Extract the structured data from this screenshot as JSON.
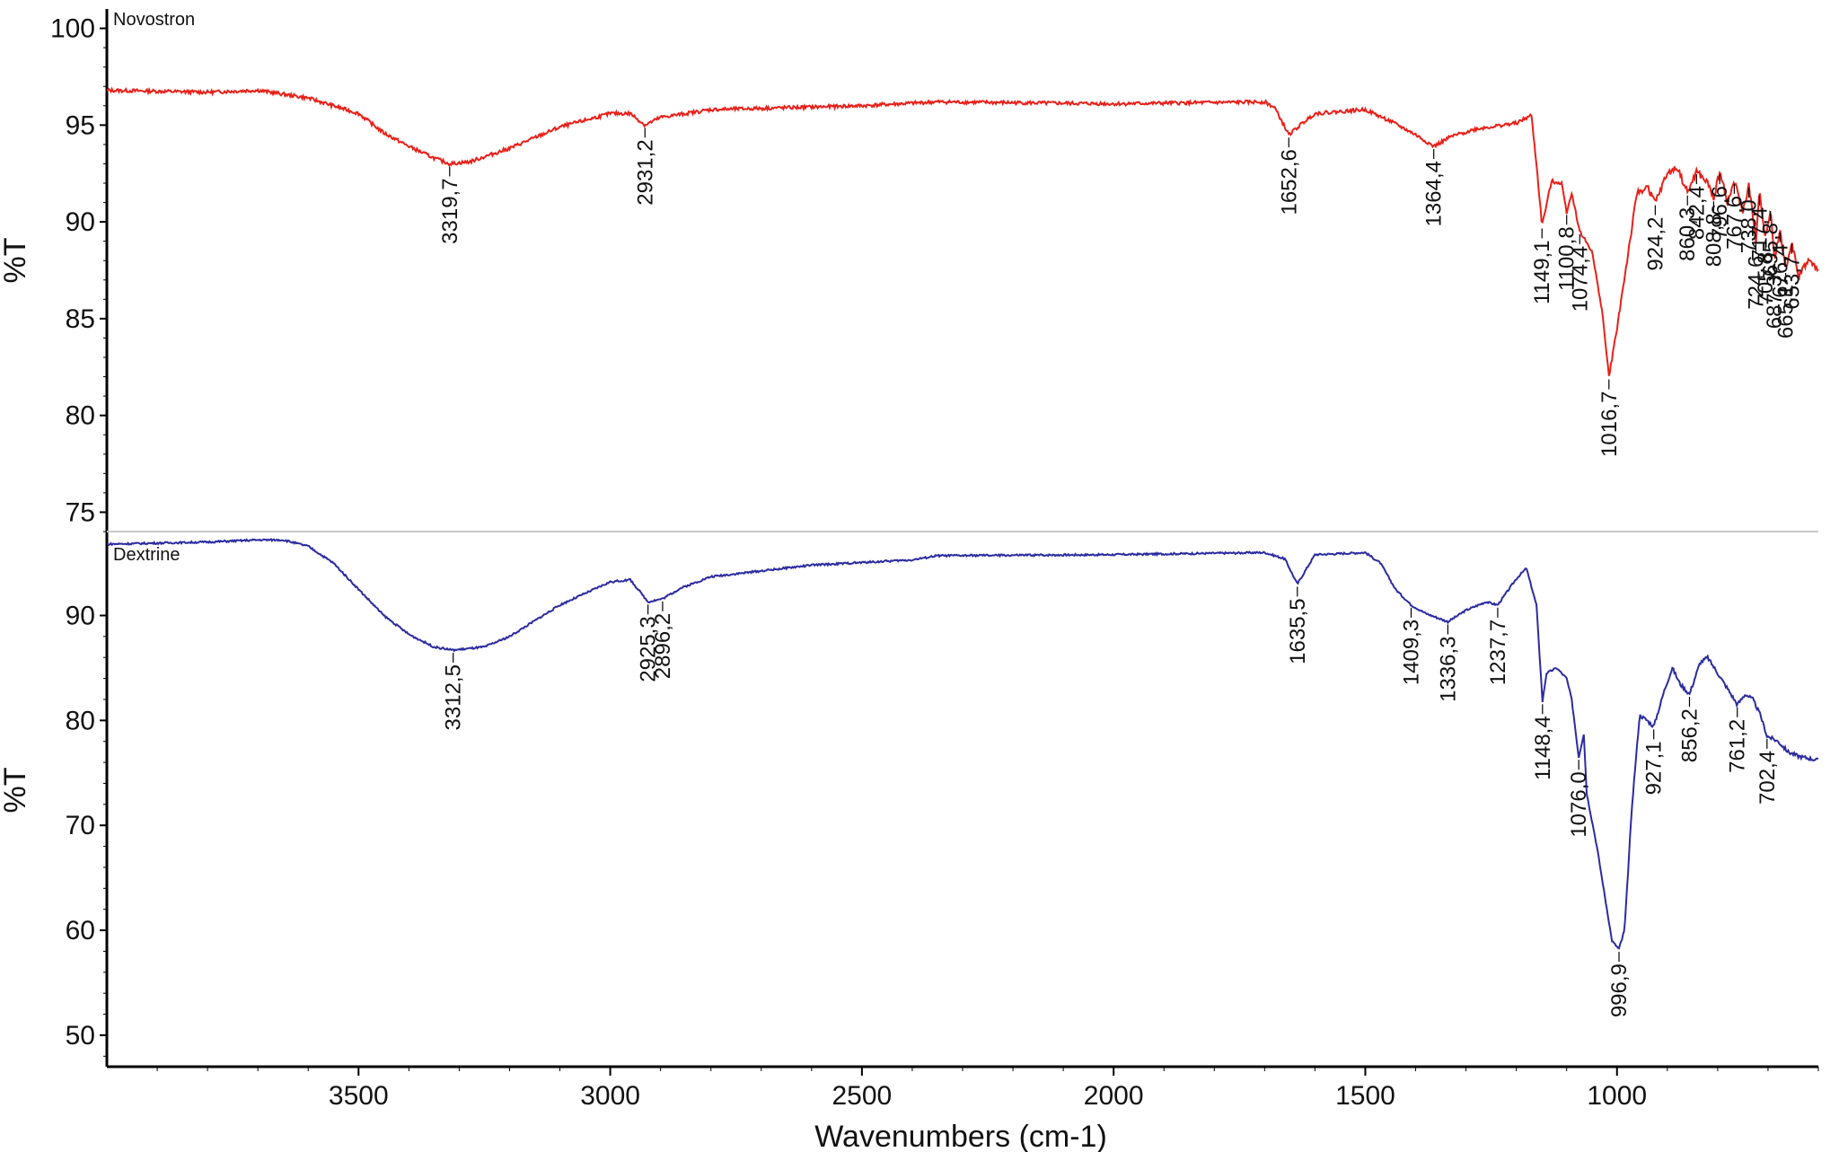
{
  "chart_data": {
    "type": "line",
    "xlabel": "Wavenumbers (cm-1)",
    "x_reversed": true,
    "xlim": [
      4000,
      600
    ],
    "x_ticks": [
      3500,
      3000,
      2500,
      2000,
      1500,
      1000
    ],
    "grid": false,
    "legend": "none",
    "panels": [
      {
        "name": "Novostron",
        "color": "#e8201a",
        "ylabel": "%T",
        "ylim": [
          74,
          101
        ],
        "y_ticks": [
          100,
          95,
          90,
          85,
          80,
          75
        ],
        "points": [
          [
            4000,
            96.8
          ],
          [
            3800,
            96.7
          ],
          [
            3700,
            96.8
          ],
          [
            3600,
            96.4
          ],
          [
            3500,
            95.6
          ],
          [
            3450,
            94.6
          ],
          [
            3400,
            93.9
          ],
          [
            3350,
            93.3
          ],
          [
            3319,
            93.0
          ],
          [
            3280,
            93.1
          ],
          [
            3200,
            93.8
          ],
          [
            3100,
            94.9
          ],
          [
            3000,
            95.6
          ],
          [
            2960,
            95.6
          ],
          [
            2931,
            95.0
          ],
          [
            2900,
            95.4
          ],
          [
            2800,
            95.8
          ],
          [
            2500,
            96.0
          ],
          [
            2350,
            96.2
          ],
          [
            2000,
            96.1
          ],
          [
            1700,
            96.2
          ],
          [
            1680,
            95.9
          ],
          [
            1652,
            94.5
          ],
          [
            1620,
            95.2
          ],
          [
            1600,
            95.6
          ],
          [
            1500,
            95.8
          ],
          [
            1450,
            95.2
          ],
          [
            1400,
            94.5
          ],
          [
            1364,
            93.9
          ],
          [
            1330,
            94.4
          ],
          [
            1280,
            94.8
          ],
          [
            1200,
            95.1
          ],
          [
            1170,
            95.5
          ],
          [
            1160,
            93.0
          ],
          [
            1149,
            89.8
          ],
          [
            1130,
            92.1
          ],
          [
            1110,
            92.0
          ],
          [
            1100,
            90.5
          ],
          [
            1090,
            91.5
          ],
          [
            1074,
            89.5
          ],
          [
            1050,
            88.5
          ],
          [
            1030,
            85.5
          ],
          [
            1016,
            82.0
          ],
          [
            1000,
            84.5
          ],
          [
            980,
            88.0
          ],
          [
            960,
            91.5
          ],
          [
            940,
            91.8
          ],
          [
            924,
            91.0
          ],
          [
            900,
            92.5
          ],
          [
            880,
            92.8
          ],
          [
            860,
            91.5
          ],
          [
            842,
            92.6
          ],
          [
            820,
            92.0
          ],
          [
            808,
            91.2
          ],
          [
            796,
            92.6
          ],
          [
            780,
            91.0
          ],
          [
            767,
            92.1
          ],
          [
            750,
            90.5
          ],
          [
            738,
            91.9
          ],
          [
            724,
            89.0
          ],
          [
            717,
            91.5
          ],
          [
            705,
            89.2
          ],
          [
            695,
            90.7
          ],
          [
            687,
            88.0
          ],
          [
            676,
            89.6
          ],
          [
            665,
            87.5
          ],
          [
            653,
            89.0
          ],
          [
            640,
            87.2
          ],
          [
            620,
            88.0
          ],
          [
            600,
            87.5
          ]
        ],
        "peaks": [
          {
            "label": "3319,7",
            "x": 3319
          },
          {
            "label": "2931,2",
            "x": 2931
          },
          {
            "label": "1652,6",
            "x": 1652
          },
          {
            "label": "1364,4",
            "x": 1364
          },
          {
            "label": "1149,1",
            "x": 1149
          },
          {
            "label": "1100,8",
            "x": 1100
          },
          {
            "label": "1074,4",
            "x": 1074
          },
          {
            "label": "1016,7",
            "x": 1016
          },
          {
            "label": "924,2",
            "x": 924
          },
          {
            "label": "860,3",
            "x": 860
          },
          {
            "label": "842,4",
            "x": 842
          },
          {
            "label": "808,8",
            "x": 808
          },
          {
            "label": "796,6",
            "x": 796
          },
          {
            "label": "767,6",
            "x": 767
          },
          {
            "label": "738,0",
            "x": 738
          },
          {
            "label": "724,6",
            "x": 724
          },
          {
            "label": "717,4",
            "x": 717
          },
          {
            "label": "705,8",
            "x": 705
          },
          {
            "label": "695,8",
            "x": 695
          },
          {
            "label": "687,3",
            "x": 687
          },
          {
            "label": "676,4",
            "x": 676
          },
          {
            "label": "665,1",
            "x": 665
          },
          {
            "label": "653,7",
            "x": 653
          }
        ]
      },
      {
        "name": "Dextrine",
        "color": "#2b2ba0",
        "ylabel": "%T",
        "ylim": [
          47,
          98
        ],
        "y_ticks": [
          90,
          80,
          70,
          60,
          50
        ],
        "points": [
          [
            4000,
            96.8
          ],
          [
            3800,
            97.0
          ],
          [
            3700,
            97.2
          ],
          [
            3650,
            97.2
          ],
          [
            3600,
            96.6
          ],
          [
            3550,
            95.0
          ],
          [
            3500,
            92.5
          ],
          [
            3450,
            90.0
          ],
          [
            3400,
            88.2
          ],
          [
            3350,
            87.0
          ],
          [
            3312,
            86.7
          ],
          [
            3250,
            87.0
          ],
          [
            3200,
            88.0
          ],
          [
            3100,
            91.0
          ],
          [
            3000,
            93.2
          ],
          [
            2960,
            93.4
          ],
          [
            2925,
            91.3
          ],
          [
            2896,
            91.6
          ],
          [
            2860,
            92.6
          ],
          [
            2800,
            93.7
          ],
          [
            2600,
            94.8
          ],
          [
            2400,
            95.3
          ],
          [
            2350,
            95.7
          ],
          [
            2000,
            95.8
          ],
          [
            1700,
            96.0
          ],
          [
            1660,
            95.4
          ],
          [
            1635,
            93.0
          ],
          [
            1600,
            95.8
          ],
          [
            1500,
            96.0
          ],
          [
            1470,
            95.0
          ],
          [
            1440,
            92.5
          ],
          [
            1409,
            91.0
          ],
          [
            1380,
            90.2
          ],
          [
            1336,
            89.4
          ],
          [
            1300,
            90.5
          ],
          [
            1260,
            91.3
          ],
          [
            1237,
            91.0
          ],
          [
            1200,
            93.5
          ],
          [
            1180,
            94.5
          ],
          [
            1160,
            91.0
          ],
          [
            1148,
            81.8
          ],
          [
            1140,
            84.5
          ],
          [
            1120,
            85.0
          ],
          [
            1100,
            84.0
          ],
          [
            1090,
            82.0
          ],
          [
            1076,
            76.5
          ],
          [
            1066,
            78.7
          ],
          [
            1060,
            73.0
          ],
          [
            1040,
            68.0
          ],
          [
            1020,
            62.0
          ],
          [
            1010,
            59.0
          ],
          [
            996,
            58.2
          ],
          [
            985,
            60.0
          ],
          [
            970,
            72.0
          ],
          [
            955,
            80.5
          ],
          [
            940,
            80.0
          ],
          [
            927,
            79.4
          ],
          [
            905,
            83.0
          ],
          [
            890,
            85.0
          ],
          [
            875,
            83.5
          ],
          [
            856,
            82.5
          ],
          [
            835,
            85.5
          ],
          [
            820,
            86.0
          ],
          [
            800,
            84.5
          ],
          [
            780,
            83.0
          ],
          [
            761,
            81.5
          ],
          [
            745,
            82.5
          ],
          [
            730,
            82.0
          ],
          [
            715,
            80.5
          ],
          [
            702,
            78.5
          ],
          [
            680,
            78.0
          ],
          [
            660,
            77.0
          ],
          [
            640,
            76.6
          ],
          [
            620,
            76.4
          ],
          [
            600,
            76.2
          ]
        ],
        "peaks": [
          {
            "label": "3312,5",
            "x": 3312
          },
          {
            "label": "2925,3",
            "x": 2925
          },
          {
            "label": "2896,2",
            "x": 2896
          },
          {
            "label": "1635,5",
            "x": 1635
          },
          {
            "label": "1409,3",
            "x": 1409
          },
          {
            "label": "1336,3",
            "x": 1336
          },
          {
            "label": "1237,7",
            "x": 1237
          },
          {
            "label": "1148,4",
            "x": 1148
          },
          {
            "label": "1076,0",
            "x": 1076
          },
          {
            "label": "996,9",
            "x": 996
          },
          {
            "label": "927,1",
            "x": 927
          },
          {
            "label": "856,2",
            "x": 856
          },
          {
            "label": "761,2",
            "x": 761
          },
          {
            "label": "702,4",
            "x": 702
          }
        ]
      }
    ]
  }
}
